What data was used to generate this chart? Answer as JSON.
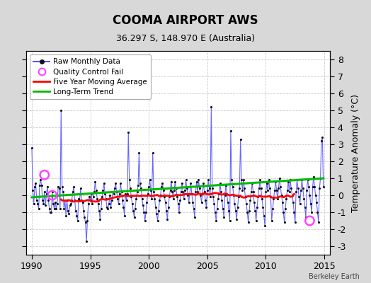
{
  "title": "COOMA AIRPORT AWS",
  "subtitle": "36.297 S, 148.970 E (Australia)",
  "ylabel": "Temperature Anomaly (°C)",
  "credit": "Berkeley Earth",
  "xlim": [
    1989.5,
    2015.5
  ],
  "ylim": [
    -3.5,
    8.5
  ],
  "yticks": [
    -3,
    -2,
    -1,
    0,
    1,
    2,
    3,
    4,
    5,
    6,
    7,
    8
  ],
  "xticks": [
    1990,
    1995,
    2000,
    2005,
    2010,
    2015
  ],
  "bg_color": "#d8d8d8",
  "plot_bg_color": "#ffffff",
  "raw_color": "#5555ff",
  "dot_color": "#111111",
  "ma_color": "#ff0000",
  "trend_color": "#00bb00",
  "qc_color": "#ff44ff",
  "raw_monthly_data": [
    2.8,
    0.3,
    -0.5,
    0.5,
    0.7,
    -0.3,
    -0.5,
    -0.8,
    0.6,
    0.9,
    0.6,
    -0.3,
    -0.5,
    0.2,
    -0.6,
    0.1,
    0.5,
    -0.3,
    -0.8,
    -1.0,
    -1.0,
    0.2,
    -0.5,
    -0.8,
    -0.4,
    -0.8,
    -0.5,
    0.5,
    0.4,
    -0.8,
    5.0,
    0.5,
    0.2,
    -0.8,
    -0.3,
    -1.2,
    -0.3,
    -0.9,
    -1.1,
    -0.6,
    -0.5,
    -0.3,
    0.2,
    0.5,
    -0.3,
    -0.9,
    -1.2,
    -1.5,
    -0.2,
    -0.3,
    0.4,
    -0.3,
    -0.4,
    -0.9,
    -1.3,
    -1.6,
    -2.7,
    -1.5,
    -0.5,
    -0.1,
    -0.3,
    0.1,
    -0.5,
    -0.1,
    0.2,
    0.8,
    0.3,
    -0.2,
    -0.5,
    -0.9,
    -1.4,
    -0.8,
    -0.1,
    0.3,
    0.7,
    0.1,
    -0.2,
    -0.7,
    -0.8,
    -0.5,
    0.0,
    -0.7,
    -0.3,
    0.2,
    0.1,
    0.4,
    0.7,
    0.2,
    -0.2,
    -0.5,
    0.1,
    0.7,
    0.2,
    -0.3,
    -0.7,
    -1.2,
    0.1,
    -0.3,
    0.1,
    3.7,
    0.9,
    0.4,
    -0.1,
    -0.5,
    -0.9,
    -1.3,
    -0.8,
    -0.2,
    0.2,
    0.6,
    2.5,
    0.7,
    0.4,
    -0.2,
    -0.6,
    -1.0,
    -1.5,
    -1.0,
    -0.4,
    0.1,
    0.5,
    0.9,
    0.3,
    -0.2,
    2.5,
    0.2,
    -0.2,
    -0.7,
    -1.1,
    -1.5,
    -0.9,
    -0.3,
    0.0,
    0.5,
    0.7,
    0.3,
    -0.1,
    -0.4,
    -0.9,
    -1.4,
    -0.7,
    -0.1,
    0.3,
    0.8,
    0.2,
    -0.2,
    0.3,
    0.8,
    0.4,
    -0.1,
    -0.5,
    -1.0,
    -0.3,
    0.2,
    0.7,
    0.2,
    -0.2,
    0.3,
    0.9,
    0.4,
    0.0,
    -0.4,
    0.1,
    0.7,
    0.1,
    -0.4,
    -0.8,
    -1.3,
    0.2,
    0.8,
    0.2,
    0.9,
    0.4,
    0.0,
    -0.4,
    0.1,
    0.7,
    0.2,
    -0.3,
    -0.7,
    0.3,
    0.9,
    0.4,
    -0.1,
    5.2,
    0.4,
    -0.1,
    -0.5,
    -1.0,
    -1.5,
    -0.8,
    -0.2,
    0.1,
    0.7,
    0.2,
    -0.3,
    -0.8,
    -1.3,
    0.0,
    0.6,
    0.1,
    -0.4,
    -0.9,
    -1.5,
    3.8,
    0.9,
    0.5,
    0.0,
    -0.5,
    -0.9,
    -1.4,
    -0.7,
    -0.1,
    0.4,
    3.3,
    0.9,
    0.3,
    0.9,
    0.4,
    -0.1,
    -0.5,
    -1.0,
    -1.6,
    -0.9,
    -0.3,
    0.2,
    0.7,
    0.2,
    -0.4,
    -0.9,
    -1.5,
    -0.7,
    -0.1,
    0.4,
    0.9,
    0.4,
    -0.2,
    -0.7,
    -1.2,
    -1.8,
    0.2,
    0.7,
    0.3,
    0.9,
    0.4,
    -0.1,
    -1.5,
    -0.8,
    -0.2,
    0.3,
    0.8,
    0.3,
    -0.2,
    0.4,
    1.0,
    0.5,
    0.0,
    -0.4,
    -1.0,
    -1.6,
    -0.8,
    -0.2,
    0.3,
    0.8,
    0.2,
    0.9,
    0.4,
    0.0,
    -0.4,
    -1.0,
    -1.6,
    0.2,
    0.9,
    0.4,
    -0.1,
    -0.5,
    0.3,
    0.9,
    0.4,
    -0.2,
    -0.7,
    -1.3,
    0.3,
    0.9,
    0.5,
    0.0,
    -0.5,
    -1.0,
    0.5,
    1.1,
    0.5,
    0.0,
    -0.4,
    -1.0,
    -1.6,
    0.4,
    1.0,
    3.2,
    3.4,
    0.5
  ],
  "qc_fail_points": [
    [
      1991.08,
      1.2
    ],
    [
      1991.75,
      0.0
    ],
    [
      2013.75,
      -1.5
    ]
  ]
}
